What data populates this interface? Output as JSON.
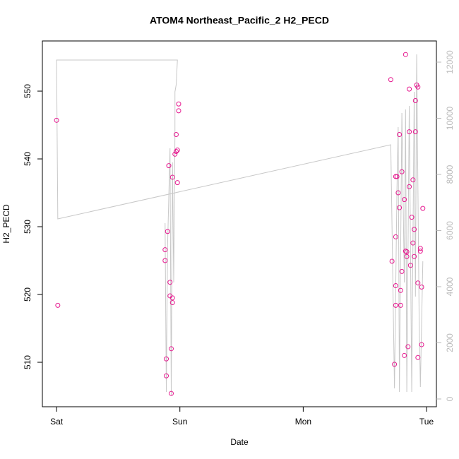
{
  "chart_data": {
    "type": "scatter",
    "title": "ATOM4 Northeast_Pacific_2 H2_PECD",
    "xlabel": "Date",
    "ylabel": "H2_PECD",
    "xlim": [
      -0.115,
      3.08
    ],
    "xticks": [
      {
        "value": 0,
        "label": "Sat"
      },
      {
        "value": 1,
        "label": "Sun"
      },
      {
        "value": 2,
        "label": "Mon"
      },
      {
        "value": 3,
        "label": "Tue"
      }
    ],
    "ylim": [
      503.44,
      557.4
    ],
    "yticks": [
      510,
      520,
      530,
      540,
      550
    ],
    "y2lim": [
      -277,
      12755
    ],
    "y2ticks": [
      0,
      2000,
      4000,
      6000,
      8000,
      10000,
      12000
    ],
    "series": [
      {
        "type": "scatter",
        "color": "#e6198f",
        "x": [
          0.0,
          0.01,
          0.88,
          0.88,
          0.89,
          0.89,
          0.9,
          0.91,
          0.92,
          0.92,
          0.93,
          0.93,
          0.94,
          0.94,
          0.94,
          0.96,
          0.97,
          0.97,
          0.98,
          0.98,
          0.99,
          0.99,
          2.71,
          2.72,
          2.74,
          2.75,
          2.75,
          2.75,
          2.75,
          2.76,
          2.77,
          2.78,
          2.78,
          2.79,
          2.79,
          2.8,
          2.8,
          2.82,
          2.82,
          2.83,
          2.83,
          2.84,
          2.84,
          2.85,
          2.86,
          2.86,
          2.86,
          2.87,
          2.88,
          2.89,
          2.89,
          2.9,
          2.9,
          2.91,
          2.91,
          2.92,
          2.93,
          2.93,
          2.93,
          2.95,
          2.95,
          2.96,
          2.96,
          2.97
        ],
        "values": [
          545.7,
          518.4,
          526.6,
          525.0,
          510.5,
          508.0,
          529.3,
          539.0,
          521.8,
          519.8,
          512.0,
          505.4,
          519.5,
          518.8,
          537.3,
          540.7,
          541.1,
          543.6,
          541.3,
          536.5,
          548.1,
          547.1,
          551.7,
          524.9,
          509.7,
          518.4,
          528.5,
          521.3,
          537.4,
          537.4,
          535.0,
          543.6,
          532.8,
          520.6,
          518.4,
          538.1,
          523.4,
          511.0,
          534.0,
          526.4,
          555.4,
          525.6,
          526.3,
          512.3,
          535.9,
          544.0,
          550.3,
          524.3,
          531.4,
          527.6,
          536.9,
          525.6,
          529.6,
          544.0,
          548.6,
          550.9,
          550.6,
          510.7,
          521.7,
          526.8,
          526.4,
          521.1,
          512.6,
          532.7
        ]
      },
      {
        "type": "line",
        "axis": "y2",
        "color": "#c8c8c8",
        "x": [
          0.88,
          0.89,
          0.9,
          0.92,
          0.93,
          0.94,
          0.95,
          0.96,
          0.96,
          0.97,
          0.98,
          0.0,
          0.01,
          2.71,
          2.74,
          2.76,
          2.77,
          2.78,
          2.8,
          2.82,
          2.83,
          2.84,
          2.86,
          2.88,
          2.9,
          2.91,
          2.92,
          2.94,
          2.95,
          2.97
        ],
        "values": [
          6264,
          252,
          5409,
          8931,
          126,
          8428,
          4151,
          9434,
          10943,
          11195,
          12075,
          12075,
          6415,
          9057,
          377,
          7421,
          9686,
          252,
          10189,
          4151,
          10314,
          252,
          10440,
          252,
          10943,
          3648,
          12277,
          2893,
          428,
          4906
        ]
      }
    ]
  }
}
